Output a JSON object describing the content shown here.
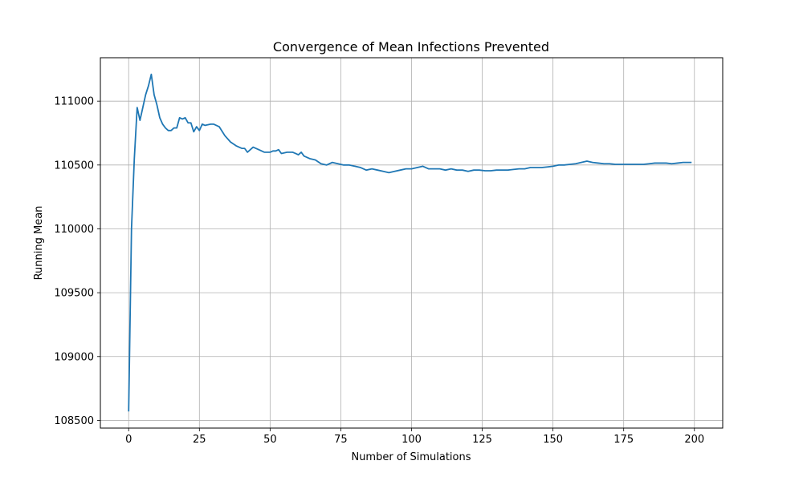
{
  "chart_data": {
    "type": "line",
    "title": "Convergence of Mean Infections Prevented",
    "xlabel": "Number of Simulations",
    "ylabel": "Running Mean",
    "xlim": [
      -10,
      210
    ],
    "ylim": [
      108440,
      111340
    ],
    "xticks": [
      0,
      25,
      50,
      75,
      100,
      125,
      150,
      175,
      200
    ],
    "yticks": [
      108500,
      109000,
      109500,
      110000,
      110500,
      111000
    ],
    "grid": true,
    "color": "#1f77b4",
    "x": [
      0,
      1,
      2,
      3,
      4,
      5,
      6,
      7,
      8,
      9,
      10,
      11,
      12,
      13,
      14,
      15,
      16,
      17,
      18,
      19,
      20,
      21,
      22,
      23,
      24,
      25,
      26,
      27,
      28,
      29,
      30,
      32,
      34,
      36,
      38,
      40,
      41,
      42,
      44,
      46,
      48,
      50,
      51,
      52,
      53,
      54,
      56,
      58,
      59,
      60,
      61,
      62,
      64,
      66,
      68,
      70,
      72,
      74,
      76,
      78,
      80,
      82,
      84,
      86,
      88,
      90,
      92,
      94,
      96,
      98,
      100,
      102,
      104,
      106,
      108,
      110,
      112,
      114,
      116,
      118,
      120,
      122,
      124,
      126,
      128,
      130,
      132,
      134,
      136,
      138,
      140,
      142,
      144,
      146,
      148,
      150,
      152,
      154,
      156,
      158,
      160,
      162,
      164,
      166,
      168,
      170,
      172,
      174,
      176,
      178,
      180,
      182,
      184,
      186,
      188,
      190,
      192,
      194,
      196,
      198,
      199
    ],
    "y": [
      108570,
      110000,
      110550,
      110950,
      110850,
      110950,
      111050,
      111120,
      111210,
      111050,
      110970,
      110870,
      110820,
      110790,
      110770,
      110770,
      110790,
      110790,
      110870,
      110860,
      110870,
      110830,
      110830,
      110760,
      110800,
      110770,
      110820,
      110810,
      110815,
      110820,
      110820,
      110800,
      110730,
      110680,
      110650,
      110630,
      110630,
      110600,
      110640,
      110620,
      110600,
      110600,
      110610,
      110610,
      110620,
      110590,
      110600,
      110600,
      110590,
      110580,
      110600,
      110570,
      110550,
      110540,
      110510,
      110500,
      110520,
      110510,
      110500,
      110500,
      110490,
      110480,
      110460,
      110470,
      110460,
      110450,
      110440,
      110450,
      110460,
      110470,
      110470,
      110480,
      110490,
      110470,
      110470,
      110470,
      110460,
      110470,
      110460,
      110460,
      110450,
      110460,
      110460,
      110455,
      110455,
      110460,
      110460,
      110460,
      110465,
      110470,
      110470,
      110480,
      110480,
      110480,
      110485,
      110490,
      110500,
      110500,
      110505,
      110510,
      110520,
      110530,
      110520,
      110515,
      110510,
      110510,
      110505,
      110505,
      110505,
      110505,
      110505,
      110505,
      110510,
      110515,
      110515,
      110515,
      110510,
      110515,
      110520,
      110520,
      110520
    ]
  }
}
